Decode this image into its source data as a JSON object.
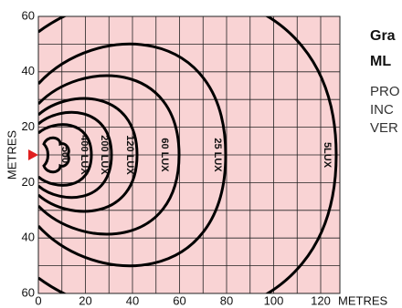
{
  "y_axis": {
    "label": "METRES",
    "ticks": [
      "60",
      "40",
      "20",
      "20",
      "40",
      "60"
    ]
  },
  "x_axis": {
    "label": "METRES",
    "ticks": [
      "0",
      "20",
      "40",
      "60",
      "80",
      "100",
      "120"
    ]
  },
  "contours": [
    {
      "label": "5LUX"
    },
    {
      "label": "25 LUX"
    },
    {
      "label": "60 LUX"
    },
    {
      "label": "120 LUX"
    },
    {
      "label": "200 LUX"
    },
    {
      "label": "400 LUX"
    },
    {
      "label": "500"
    }
  ],
  "side_text": {
    "title_lines": [
      "Gra",
      "ML"
    ],
    "body_lines": [
      "PRO",
      "INC",
      "VER"
    ]
  }
}
